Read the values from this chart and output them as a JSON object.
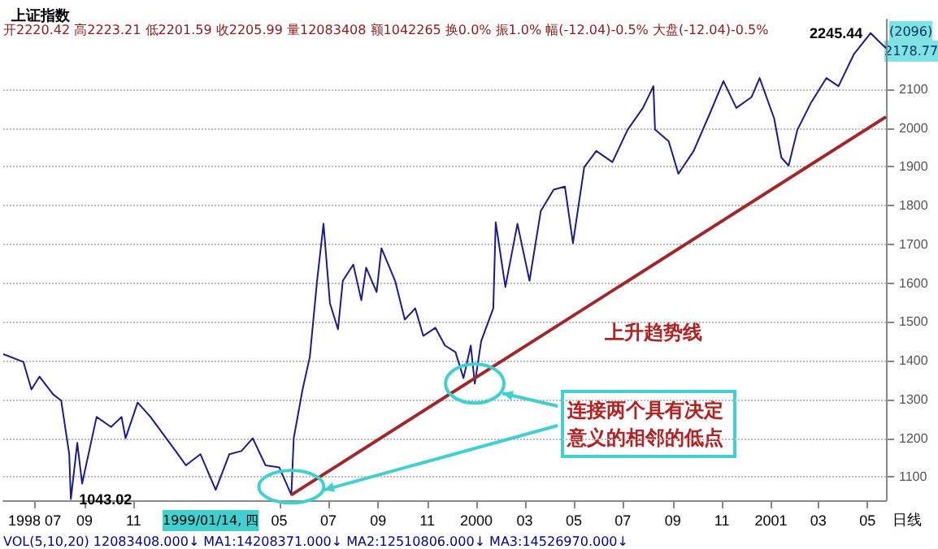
{
  "chart_data": {
    "type": "line",
    "title": "上证指数",
    "x": [
      "1998-05-23",
      "1998-06-17",
      "1998-06-27",
      "1998-07-07",
      "1998-07-24",
      "1998-08-03",
      "1998-08-13",
      "1998-08-15",
      "1998-08-23",
      "1998-08-29",
      "1998-09-16",
      "1998-10-04",
      "1998-10-17",
      "1998-10-22",
      "1998-11-06",
      "1998-11-22",
      "1998-12-26",
      "1999-01-05",
      "1999-01-23",
      "1999-02-11",
      "1999-02-28",
      "1999-03-15",
      "1999-03-29",
      "1999-04-14",
      "1999-05-01",
      "1999-05-16",
      "1999-05-19",
      "1999-05-30",
      "1999-06-08",
      "1999-06-17",
      "1999-06-25",
      "1999-07-03",
      "1999-07-13",
      "1999-07-19",
      "1999-08-01",
      "1999-08-11",
      "1999-08-17",
      "1999-08-30",
      "1999-09-05",
      "1999-09-22",
      "1999-10-04",
      "1999-10-17",
      "1999-10-27",
      "1999-11-11",
      "1999-11-23",
      "1999-12-06",
      "1999-12-16",
      "1999-12-25",
      "1999-12-30",
      "2000-01-07",
      "2000-01-22",
      "2000-01-25",
      "2000-02-06",
      "2000-02-21",
      "2000-03-07",
      "2000-03-21",
      "2000-04-06",
      "2000-04-20",
      "2000-04-30",
      "2000-05-14",
      "2000-05-29",
      "2000-06-18",
      "2000-07-07",
      "2000-07-26",
      "2000-08-08",
      "2000-08-10",
      "2000-08-27",
      "2000-09-08",
      "2000-09-27",
      "2000-10-17",
      "2000-11-03",
      "2000-11-19",
      "2000-12-08",
      "2000-12-18",
      "2001-01-05",
      "2001-01-14",
      "2001-01-23",
      "2001-02-03",
      "2001-02-20",
      "2001-03-11",
      "2001-03-26",
      "2001-04-14",
      "2001-05-05",
      "2001-05-14",
      "2001-05-24"
    ],
    "series": [
      {
        "color": "#1c1c8a",
        "values": [
          1417,
          1397,
          1326,
          1359,
          1313,
          1297,
          1159,
          1043,
          1188,
          1083,
          1255,
          1229,
          1255,
          1200,
          1292,
          1255,
          1159,
          1130,
          1159,
          1067,
          1159,
          1167,
          1200,
          1130,
          1125,
          1054,
          1200,
          1326,
          1410,
          1606,
          1753,
          1548,
          1481,
          1606,
          1648,
          1556,
          1640,
          1577,
          1690,
          1606,
          1506,
          1535,
          1464,
          1485,
          1439,
          1422,
          1355,
          1439,
          1341,
          1451,
          1535,
          1757,
          1590,
          1753,
          1606,
          1786,
          1841,
          1849,
          1703,
          1899,
          1941,
          1912,
          1996,
          2052,
          2108,
          1996,
          1966,
          1882,
          1941,
          2037,
          2121,
          2052,
          2080,
          2129,
          2025,
          1924,
          1903,
          1996,
          2066,
          2129,
          2108,
          2190,
          2245,
          2226,
          2206
        ]
      },
      {
        "type": "line",
        "color": "#a0282a",
        "x": [
          "1999-05-16",
          "2001-05-24"
        ],
        "values": [
          1054,
          2029
        ]
      }
    ],
    "xlim": [
      "1998-05-23",
      "2001-05-24"
    ],
    "ylim": [
      1040,
      2280
    ],
    "yticks": [
      1100,
      1200,
      1300,
      1400,
      1500,
      1600,
      1700,
      1800,
      1900,
      2000,
      2100
    ],
    "xticks": [
      {
        "value": "1998-07-01",
        "label": "1998 07"
      },
      {
        "value": "1998-09-01",
        "label": "09"
      },
      {
        "value": "1998-11-01",
        "label": "11"
      },
      {
        "value": "1999-05-01",
        "label": "05"
      },
      {
        "value": "1999-07-01",
        "label": "07"
      },
      {
        "value": "1999-09-01",
        "label": "09"
      },
      {
        "value": "1999-11-01",
        "label": "11"
      },
      {
        "value": "2000-01-01",
        "label": "2000"
      },
      {
        "value": "2000-03-01",
        "label": "03"
      },
      {
        "value": "2000-05-01",
        "label": "05"
      },
      {
        "value": "2000-07-01",
        "label": "07"
      },
      {
        "value": "2000-09-01",
        "label": "09"
      },
      {
        "value": "2000-11-01",
        "label": "11"
      },
      {
        "value": "2001-01-01",
        "label": "2001"
      },
      {
        "value": "2001-03-01",
        "label": "03"
      },
      {
        "value": "2001-05-01",
        "label": "05"
      }
    ],
    "grid": "y",
    "marker": "none",
    "annotations": [
      "开2220.42 高2223.21 低2201.59 收2205.99 量12083408 额1042265 换0.0% 振1.0% 幅(-12.04)-0.5% 大盘(-12.04)-0.5%",
      "(2096)",
      "2178.77",
      "上升趋势线",
      "连接两个具有决定意义的相邻的低点",
      "1999/01/14, 四",
      "日线",
      "VOL(5,10,20) 12083408.000↓ MA1:14208371.000↓ MA2:12510806.000↓ MA3:14526970.000↓",
      {
        "text": "1043.02",
        "x": "1998-08-15",
        "y": 1043
      },
      {
        "text": "2245.44",
        "x": "2001-05-05",
        "y": 2245
      }
    ]
  }
}
